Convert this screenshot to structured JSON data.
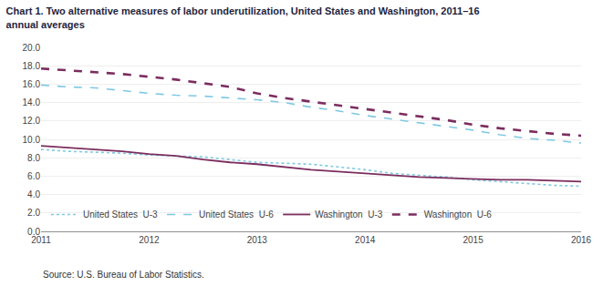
{
  "chart_data": {
    "type": "line",
    "title": "Chart 1. Two alternative measures of labor underutilization, United States and Washington, 2011–16",
    "subtitle": "annual averages",
    "annotations": [
      "Source: U.S. Bureau of Labor Statistics."
    ],
    "x": [
      2011,
      2011.25,
      2011.5,
      2011.75,
      2012,
      2012.25,
      2012.5,
      2012.75,
      2013,
      2013.25,
      2013.5,
      2013.75,
      2014,
      2014.25,
      2014.5,
      2014.75,
      2015,
      2015.25,
      2015.5,
      2015.75,
      2016
    ],
    "series": [
      {
        "name": "United States  U-3",
        "color": "#7ec8e3",
        "line_style": "dotted",
        "values": [
          8.9,
          8.7,
          8.6,
          8.5,
          8.3,
          8.2,
          8.1,
          7.8,
          7.5,
          7.4,
          7.3,
          7.0,
          6.7,
          6.3,
          6.1,
          5.9,
          5.6,
          5.4,
          5.2,
          5.0,
          4.9
        ]
      },
      {
        "name": "United States  U-6",
        "color": "#7ec8e3",
        "line_style": "dashed",
        "values": [
          15.9,
          15.7,
          15.6,
          15.3,
          15.0,
          14.8,
          14.7,
          14.5,
          14.3,
          14.0,
          13.5,
          13.1,
          12.6,
          12.2,
          11.8,
          11.4,
          11.0,
          10.5,
          10.1,
          9.9,
          9.6
        ]
      },
      {
        "name": "Washington  U-3",
        "color": "#7b2d5e",
        "line_style": "solid",
        "values": [
          9.3,
          9.1,
          8.9,
          8.7,
          8.4,
          8.2,
          7.8,
          7.5,
          7.3,
          7.0,
          6.7,
          6.5,
          6.3,
          6.1,
          5.9,
          5.8,
          5.7,
          5.6,
          5.6,
          5.5,
          5.4
        ]
      },
      {
        "name": "Washington  U-6",
        "color": "#7b2d5e",
        "line_style": "dashed",
        "values": [
          17.7,
          17.5,
          17.3,
          17.1,
          16.8,
          16.5,
          16.1,
          15.7,
          15.0,
          14.5,
          14.1,
          13.7,
          13.3,
          12.9,
          12.5,
          12.1,
          11.6,
          11.2,
          10.9,
          10.6,
          10.4
        ]
      }
    ],
    "xlim": [
      2011,
      2016
    ],
    "xticks": [
      2011,
      2012,
      2013,
      2014,
      2015,
      2016
    ],
    "ylim": [
      0.0,
      20.0
    ],
    "yticks": [
      {
        "value": 0.0,
        "label": "0.0"
      },
      {
        "value": 2.0,
        "label": "2.0"
      },
      {
        "value": 4.0,
        "label": "4.0"
      },
      {
        "value": 6.0,
        "label": "6.0"
      },
      {
        "value": 8.0,
        "label": "8.0"
      },
      {
        "value": 10.0,
        "label": "10.0"
      },
      {
        "value": 12.0,
        "label": "12.0"
      },
      {
        "value": 14.0,
        "label": "14.0"
      },
      {
        "value": 16.0,
        "label": "16.0"
      },
      {
        "value": 18.0,
        "label": "18.0"
      },
      {
        "value": 20.0,
        "label": "20.0"
      }
    ],
    "grid": true,
    "legend": "lower left"
  }
}
